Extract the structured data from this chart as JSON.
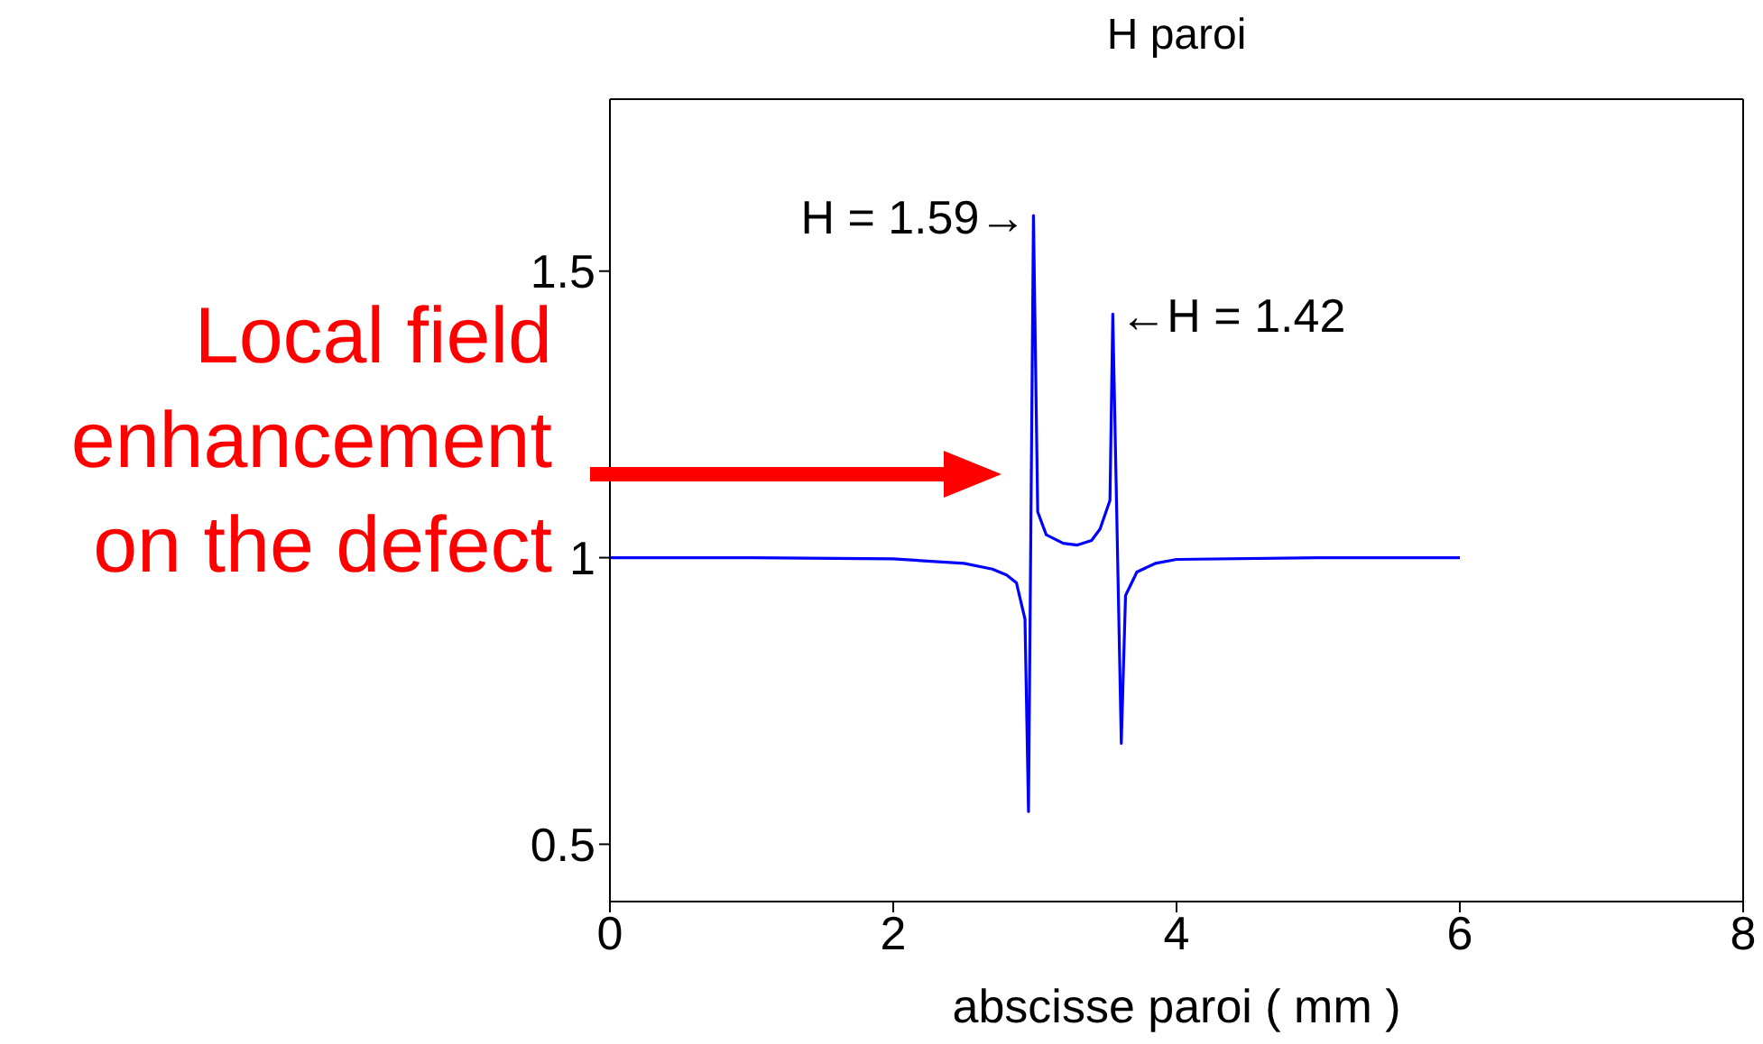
{
  "chart_data": {
    "type": "line",
    "title": "H paroi",
    "xlabel": "abscisse paroi ( mm )",
    "x": [
      0,
      1,
      2,
      2.5,
      2.7,
      2.8,
      2.87,
      2.93,
      2.955,
      2.99,
      3.02,
      3.08,
      3.2,
      3.3,
      3.4,
      3.46,
      3.53,
      3.55,
      3.61,
      3.64,
      3.72,
      3.85,
      4,
      5,
      6
    ],
    "series": [
      {
        "color": "#0000ff",
        "values": [
          1,
          1,
          0.998,
          0.99,
          0.98,
          0.97,
          0.956,
          0.893,
          0.557,
          1.597,
          1.08,
          1.04,
          1.025,
          1.022,
          1.03,
          1.05,
          1.1,
          1.425,
          0.676,
          0.934,
          0.975,
          0.99,
          0.997,
          1,
          1
        ]
      }
    ],
    "xlim": [
      0,
      8
    ],
    "xticks": [
      0,
      2,
      4,
      6,
      8
    ],
    "ylim": [
      0.4,
      1.8
    ],
    "yticks": [
      0.5,
      1,
      1.5
    ],
    "marker": "none",
    "line_style": "solid",
    "annotations": [
      {
        "text": "H = 1.59→",
        "x": 2.99,
        "y": 1.597
      },
      {
        "text": "←H = 1.42",
        "x": 3.55,
        "y": 1.425
      },
      "Local field enhancement on the defect"
    ]
  }
}
